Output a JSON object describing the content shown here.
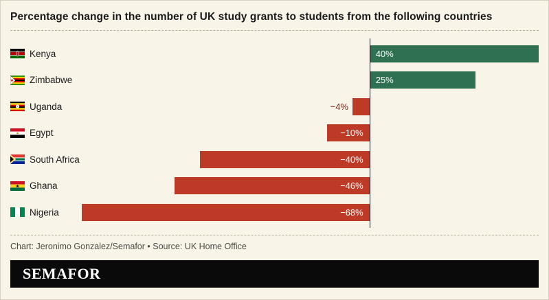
{
  "chart_data": {
    "type": "bar",
    "orientation": "horizontal",
    "title": "Percentage change in the number of UK study grants to students from the following countries",
    "categories": [
      "Kenya",
      "Zimbabwe",
      "Uganda",
      "Egypt",
      "South Africa",
      "Ghana",
      "Nigeria"
    ],
    "values": [
      40,
      25,
      -4,
      -10,
      -40,
      -46,
      -68
    ],
    "value_labels": [
      "40%",
      "25%",
      "−4%",
      "−10%",
      "−40%",
      "−46%",
      "−68%"
    ],
    "flags": [
      "kenya",
      "zimbabwe",
      "uganda",
      "egypt",
      "south-africa",
      "ghana",
      "nigeria"
    ],
    "xlim": [
      -68,
      40
    ],
    "legend": "none",
    "grid": "off",
    "colors": {
      "positive": "#2e7050",
      "negative": "#bd3a26",
      "negative_label_outside": "#7a2617",
      "background": "#f9f4e8",
      "axis": "#111111"
    }
  },
  "footer": {
    "credit": "Chart: Jeronimo Gonzalez/Semafor • Source: UK Home Office",
    "logo": "SEMAFOR"
  }
}
